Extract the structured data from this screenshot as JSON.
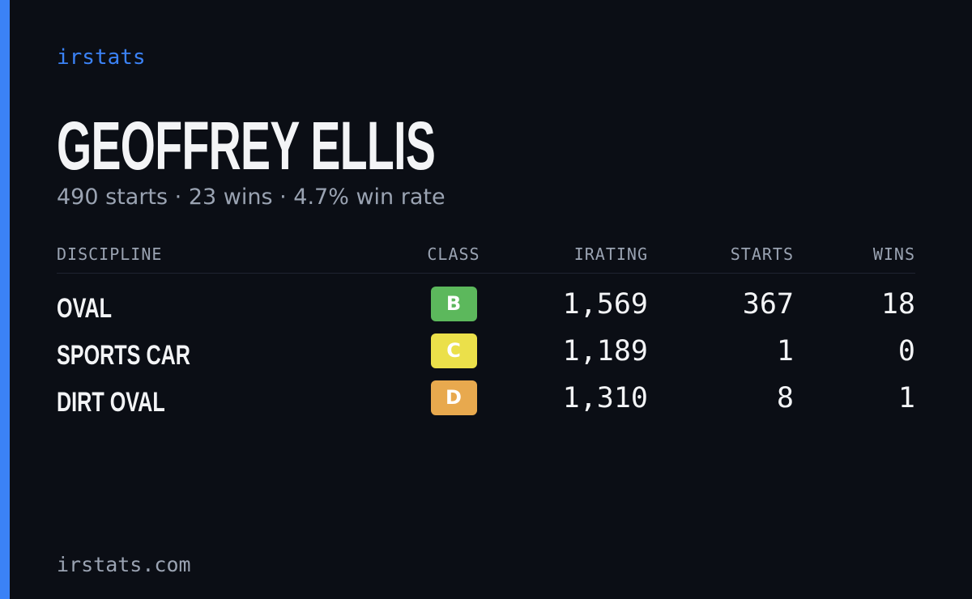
{
  "brand": "irstats",
  "header": {
    "name": "GEOFFREY ELLIS",
    "summary": "490 starts · 23 wins · 4.7% win rate"
  },
  "table": {
    "columns": [
      "DISCIPLINE",
      "CLASS",
      "IRATING",
      "STARTS",
      "WINS"
    ],
    "rows": [
      {
        "discipline": "OVAL",
        "class": "B",
        "class_color": "#5cb85c",
        "irating": "1,569",
        "starts": 367,
        "wins": 18
      },
      {
        "discipline": "SPORTS CAR",
        "class": "C",
        "class_color": "#ebe04a",
        "irating": "1,189",
        "starts": 1,
        "wins": 0
      },
      {
        "discipline": "DIRT OVAL",
        "class": "D",
        "class_color": "#e8a94e",
        "irating": "1,310",
        "starts": 8,
        "wins": 1
      }
    ]
  },
  "footer": "irstats.com"
}
